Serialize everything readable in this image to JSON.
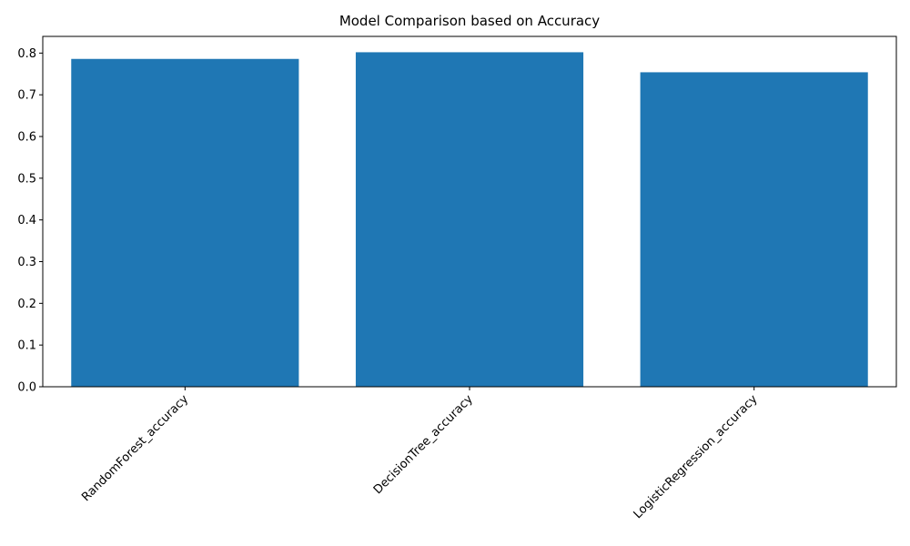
{
  "chart_data": {
    "type": "bar",
    "title": "Model Comparison based on Accuracy",
    "xlabel": "",
    "ylabel": "",
    "categories": [
      "RandomForest_accuracy",
      "DecisionTree_accuracy",
      "LogisticRegression_accuracy"
    ],
    "values": [
      0.786,
      0.802,
      0.754
    ],
    "ylim": [
      0,
      0.84
    ],
    "yticks": [
      "0.0",
      "0.1",
      "0.2",
      "0.3",
      "0.4",
      "0.5",
      "0.6",
      "0.7",
      "0.8"
    ],
    "xtick_rotation_deg": 45,
    "grid": false,
    "legend": "none",
    "bar_color": "#1f77b4"
  }
}
